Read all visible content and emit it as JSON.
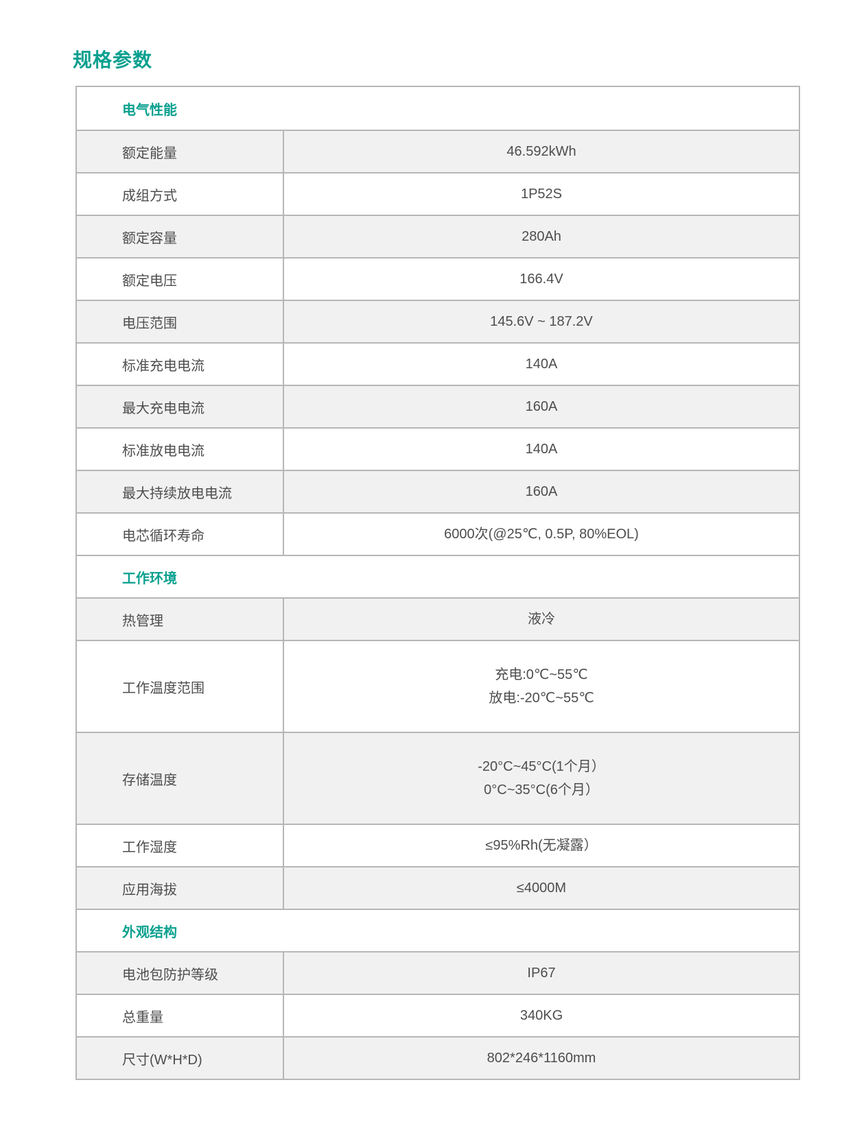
{
  "page_title": "规格参数",
  "colors": {
    "accent_teal": "#0aa08f",
    "text": "#4d4d4d",
    "row_shaded_bg": "#f1f1f1",
    "border": "#b6b6b6"
  },
  "table": {
    "sections": [
      {
        "header": "电气性能",
        "rows": [
          {
            "label": "额定能量",
            "value": "46.592kWh"
          },
          {
            "label": "成组方式",
            "value": "1P52S"
          },
          {
            "label": "额定容量",
            "value": "280Ah"
          },
          {
            "label": "额定电压",
            "value": "166.4V"
          },
          {
            "label": "电压范围",
            "value": "145.6V ~ 187.2V"
          },
          {
            "label": "标准充电电流",
            "value": "140A"
          },
          {
            "label": "最大充电电流",
            "value": "160A"
          },
          {
            "label": "标准放电电流",
            "value": "140A"
          },
          {
            "label": "最大持续放电电流",
            "value": "160A"
          },
          {
            "label": "电芯循环寿命",
            "value": "6000次(@25℃, 0.5P, 80%EOL)"
          }
        ]
      },
      {
        "header": "工作环境",
        "rows": [
          {
            "label": "热管理",
            "value": "液冷"
          },
          {
            "label": "工作温度范围",
            "value_lines": [
              "充电:0℃~55℃",
              "放电:-20℃~55℃"
            ]
          },
          {
            "label": "存储温度",
            "value_lines": [
              "-20°C~45°C(1个月）",
              "0°C~35°C(6个月）"
            ]
          },
          {
            "label": "工作湿度",
            "value": "≤95%Rh(无凝露）"
          },
          {
            "label": "应用海拔",
            "value": "≤4000M"
          }
        ]
      },
      {
        "header": "外观结构",
        "rows": [
          {
            "label": "电池包防护等级",
            "value": "IP67"
          },
          {
            "label": "总重量",
            "value": "340KG"
          },
          {
            "label": "尺寸(W*H*D)",
            "value": "802*246*1160mm"
          }
        ]
      }
    ]
  }
}
